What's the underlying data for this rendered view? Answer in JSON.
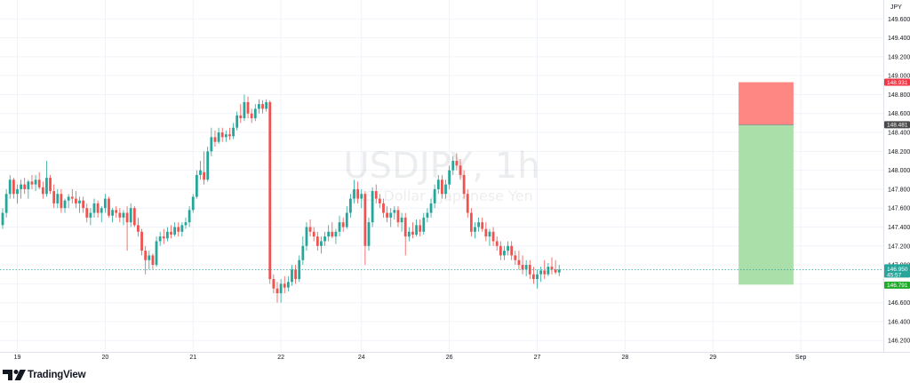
{
  "chart_data": {
    "type": "candlestick",
    "symbol": "USDJPY",
    "interval": "1h",
    "description": "U.S. Dollar / Japanese Yen",
    "currency_label": "JPY",
    "y_ticks": [
      "146.200",
      "146.400",
      "146.600",
      "146.800",
      "147.000",
      "147.200",
      "147.400",
      "147.600",
      "147.800",
      "148.000",
      "148.200",
      "148.400",
      "148.600",
      "148.800",
      "149.000",
      "149.200",
      "149.400",
      "149.600"
    ],
    "ylim": [
      146.08,
      149.8
    ],
    "x_ticks": [
      {
        "label": "19",
        "index": 4
      },
      {
        "label": "20",
        "index": 28
      },
      {
        "label": "21",
        "index": 52
      },
      {
        "label": "22",
        "index": 76
      },
      {
        "label": "24",
        "index": 98
      },
      {
        "label": "26",
        "index": 122
      },
      {
        "label": "27",
        "index": 146
      },
      {
        "label": "28",
        "index": 170
      },
      {
        "label": "29",
        "index": 194
      },
      {
        "label": "Sep",
        "index": 218
      }
    ],
    "current_price": "146.950",
    "countdown": "45:57",
    "position": {
      "type": "short",
      "stop_price": "148.931",
      "entry_price": "148.481",
      "target_price": "146.791",
      "stop": 148.931,
      "entry": 148.481,
      "target": 146.791,
      "start_index": 201,
      "end_index": 216
    },
    "candles": [
      [
        147.42,
        147.6,
        147.38,
        147.55
      ],
      [
        147.55,
        147.8,
        147.5,
        147.75
      ],
      [
        147.75,
        147.95,
        147.7,
        147.9
      ],
      [
        147.9,
        147.92,
        147.7,
        147.75
      ],
      [
        147.75,
        147.85,
        147.65,
        147.8
      ],
      [
        147.8,
        147.9,
        147.7,
        147.85
      ],
      [
        147.85,
        147.92,
        147.75,
        147.8
      ],
      [
        147.8,
        147.9,
        147.7,
        147.88
      ],
      [
        147.88,
        147.95,
        147.8,
        147.85
      ],
      [
        147.85,
        147.95,
        147.78,
        147.9
      ],
      [
        147.9,
        147.98,
        147.8,
        147.82
      ],
      [
        147.82,
        147.88,
        147.7,
        147.75
      ],
      [
        147.75,
        148.1,
        147.72,
        147.92
      ],
      [
        147.92,
        147.95,
        147.75,
        147.78
      ],
      [
        147.78,
        147.85,
        147.6,
        147.65
      ],
      [
        147.65,
        147.8,
        147.6,
        147.75
      ],
      [
        147.75,
        147.8,
        147.55,
        147.6
      ],
      [
        147.6,
        147.7,
        147.55,
        147.68
      ],
      [
        147.68,
        147.75,
        147.6,
        147.72
      ],
      [
        147.72,
        147.8,
        147.65,
        147.7
      ],
      [
        147.7,
        147.78,
        147.6,
        147.65
      ],
      [
        147.65,
        147.72,
        147.55,
        147.68
      ],
      [
        147.68,
        147.72,
        147.55,
        147.6
      ],
      [
        147.6,
        147.65,
        147.45,
        147.5
      ],
      [
        147.5,
        147.6,
        147.42,
        147.55
      ],
      [
        147.55,
        147.7,
        147.5,
        147.65
      ],
      [
        147.65,
        147.68,
        147.5,
        147.55
      ],
      [
        147.55,
        147.62,
        147.45,
        147.6
      ],
      [
        147.6,
        147.75,
        147.55,
        147.7
      ],
      [
        147.7,
        147.72,
        147.5,
        147.52
      ],
      [
        147.52,
        147.6,
        147.45,
        147.58
      ],
      [
        147.58,
        147.62,
        147.5,
        147.55
      ],
      [
        147.55,
        147.6,
        147.45,
        147.5
      ],
      [
        147.5,
        147.58,
        147.42,
        147.55
      ],
      [
        147.55,
        147.62,
        147.15,
        147.45
      ],
      [
        147.45,
        147.65,
        147.4,
        147.6
      ],
      [
        147.6,
        147.62,
        147.4,
        147.42
      ],
      [
        147.42,
        147.5,
        147.3,
        147.35
      ],
      [
        147.35,
        147.38,
        147.1,
        147.15
      ],
      [
        147.15,
        147.2,
        146.9,
        147.05
      ],
      [
        147.05,
        147.15,
        146.95,
        147.1
      ],
      [
        147.1,
        147.12,
        146.95,
        147.0
      ],
      [
        147.0,
        147.3,
        146.98,
        147.25
      ],
      [
        147.25,
        147.35,
        147.2,
        147.3
      ],
      [
        147.3,
        147.38,
        147.22,
        147.28
      ],
      [
        147.28,
        147.4,
        147.25,
        147.35
      ],
      [
        147.35,
        147.42,
        147.28,
        147.32
      ],
      [
        147.32,
        147.45,
        147.3,
        147.4
      ],
      [
        147.4,
        147.45,
        147.3,
        147.35
      ],
      [
        147.35,
        147.45,
        147.3,
        147.42
      ],
      [
        147.42,
        147.5,
        147.38,
        147.45
      ],
      [
        147.45,
        147.62,
        147.4,
        147.58
      ],
      [
        147.58,
        147.75,
        147.55,
        147.72
      ],
      [
        147.72,
        148.0,
        147.7,
        147.95
      ],
      [
        147.95,
        148.1,
        147.9,
        148.0
      ],
      [
        147.98,
        148.2,
        147.85,
        147.9
      ],
      [
        147.9,
        148.25,
        147.88,
        148.2
      ],
      [
        148.2,
        148.45,
        148.15,
        148.35
      ],
      [
        148.35,
        148.42,
        148.25,
        148.3
      ],
      [
        148.3,
        148.45,
        148.28,
        148.4
      ],
      [
        148.4,
        148.45,
        148.3,
        148.35
      ],
      [
        148.35,
        148.42,
        148.3,
        148.38
      ],
      [
        148.38,
        148.45,
        148.32,
        148.36
      ],
      [
        148.36,
        148.5,
        148.33,
        148.45
      ],
      [
        148.45,
        148.62,
        148.42,
        148.58
      ],
      [
        148.58,
        148.7,
        148.5,
        148.55
      ],
      [
        148.55,
        148.8,
        148.52,
        148.72
      ],
      [
        148.72,
        148.78,
        148.55,
        148.6
      ],
      [
        148.6,
        148.65,
        148.5,
        148.55
      ],
      [
        148.55,
        148.7,
        148.52,
        148.65
      ],
      [
        148.65,
        148.75,
        148.6,
        148.7
      ],
      [
        148.7,
        148.74,
        148.6,
        148.65
      ],
      [
        148.65,
        148.75,
        148.62,
        148.72
      ],
      [
        148.72,
        148.74,
        146.8,
        146.85
      ],
      [
        146.85,
        146.9,
        146.7,
        146.75
      ],
      [
        146.75,
        146.82,
        146.6,
        146.7
      ],
      [
        146.7,
        146.85,
        146.6,
        146.8
      ],
      [
        146.8,
        146.88,
        146.7,
        146.76
      ],
      [
        146.76,
        146.88,
        146.72,
        146.82
      ],
      [
        146.82,
        147.0,
        146.78,
        146.95
      ],
      [
        146.95,
        147.0,
        146.8,
        146.85
      ],
      [
        146.85,
        147.1,
        146.82,
        147.05
      ],
      [
        147.05,
        147.3,
        147.0,
        147.2
      ],
      [
        147.2,
        147.45,
        147.15,
        147.4
      ],
      [
        147.4,
        147.48,
        147.3,
        147.35
      ],
      [
        147.35,
        147.4,
        147.25,
        147.3
      ],
      [
        147.3,
        147.35,
        147.15,
        147.2
      ],
      [
        147.2,
        147.3,
        147.12,
        147.25
      ],
      [
        147.25,
        147.35,
        147.2,
        147.3
      ],
      [
        147.3,
        147.42,
        147.25,
        147.35
      ],
      [
        147.35,
        147.45,
        147.28,
        147.3
      ],
      [
        147.3,
        147.38,
        147.22,
        147.35
      ],
      [
        147.35,
        147.52,
        147.3,
        147.45
      ],
      [
        147.45,
        147.5,
        147.35,
        147.4
      ],
      [
        147.4,
        147.62,
        147.38,
        147.55
      ],
      [
        147.55,
        147.75,
        147.5,
        147.7
      ],
      [
        147.7,
        147.9,
        147.65,
        147.8
      ],
      [
        147.8,
        147.88,
        147.65,
        147.7
      ],
      [
        147.7,
        147.8,
        147.6,
        147.75
      ],
      [
        147.75,
        147.78,
        147.0,
        147.2
      ],
      [
        147.2,
        147.5,
        147.15,
        147.45
      ],
      [
        147.45,
        147.82,
        147.4,
        147.78
      ],
      [
        147.78,
        147.85,
        147.65,
        147.7
      ],
      [
        147.7,
        147.75,
        147.6,
        147.65
      ],
      [
        147.65,
        147.7,
        147.5,
        147.55
      ],
      [
        147.55,
        147.62,
        147.45,
        147.5
      ],
      [
        147.5,
        147.6,
        147.4,
        147.55
      ],
      [
        147.55,
        147.62,
        147.48,
        147.58
      ],
      [
        147.58,
        147.62,
        147.4,
        147.45
      ],
      [
        147.45,
        147.55,
        147.35,
        147.5
      ],
      [
        147.5,
        147.55,
        147.1,
        147.3
      ],
      [
        147.3,
        147.4,
        147.25,
        147.35
      ],
      [
        147.35,
        147.45,
        147.28,
        147.32
      ],
      [
        147.32,
        147.48,
        147.3,
        147.42
      ],
      [
        147.42,
        147.48,
        147.3,
        147.35
      ],
      [
        147.35,
        147.55,
        147.32,
        147.5
      ],
      [
        147.5,
        147.6,
        147.45,
        147.55
      ],
      [
        147.55,
        147.7,
        147.5,
        147.65
      ],
      [
        147.65,
        147.85,
        147.6,
        147.8
      ],
      [
        147.8,
        147.95,
        147.75,
        147.9
      ],
      [
        147.9,
        147.95,
        147.7,
        147.75
      ],
      [
        147.75,
        147.9,
        147.7,
        147.85
      ],
      [
        147.85,
        148.05,
        147.8,
        148.0
      ],
      [
        148.0,
        148.15,
        147.95,
        148.1
      ],
      [
        148.1,
        148.18,
        148.0,
        148.05
      ],
      [
        148.05,
        148.12,
        147.9,
        147.95
      ],
      [
        147.95,
        148.0,
        147.7,
        147.75
      ],
      [
        147.75,
        147.8,
        147.5,
        147.55
      ],
      [
        147.55,
        147.6,
        147.3,
        147.35
      ],
      [
        147.35,
        147.45,
        147.28,
        147.4
      ],
      [
        147.4,
        147.5,
        147.35,
        147.45
      ],
      [
        147.45,
        147.5,
        147.35,
        147.38
      ],
      [
        147.38,
        147.45,
        147.25,
        147.3
      ],
      [
        147.3,
        147.38,
        147.2,
        147.35
      ],
      [
        147.35,
        147.4,
        147.2,
        147.25
      ],
      [
        147.25,
        147.3,
        147.15,
        147.2
      ],
      [
        147.2,
        147.25,
        147.05,
        147.1
      ],
      [
        147.1,
        147.2,
        147.05,
        147.15
      ],
      [
        147.15,
        147.25,
        147.1,
        147.2
      ],
      [
        147.2,
        147.25,
        147.05,
        147.1
      ],
      [
        147.1,
        147.15,
        147.0,
        147.05
      ],
      [
        147.05,
        147.15,
        146.95,
        147.0
      ],
      [
        147.0,
        147.1,
        146.9,
        146.95
      ],
      [
        146.95,
        147.05,
        146.88,
        147.0
      ],
      [
        147.0,
        147.05,
        146.85,
        146.9
      ],
      [
        146.9,
        146.98,
        146.8,
        146.85
      ],
      [
        146.85,
        146.95,
        146.75,
        146.9
      ],
      [
        146.9,
        146.98,
        146.82,
        146.94
      ],
      [
        146.94,
        147.05,
        146.85,
        146.9
      ],
      [
        146.9,
        147.02,
        146.88,
        146.98
      ],
      [
        146.98,
        147.08,
        146.9,
        146.95
      ],
      [
        146.95,
        147.05,
        146.9,
        146.92
      ],
      [
        146.92,
        147.0,
        146.88,
        146.95
      ]
    ]
  },
  "footer": {
    "brand": "TradingView"
  },
  "colors": {
    "up": "#26a69a",
    "down": "#ef5350",
    "profit_zone": "#abdfa9",
    "loss_zone": "#ff8783",
    "entry_tag": "#4a4a4a",
    "stop_tag": "#f23645",
    "target_tag": "#22ab2b",
    "price_line": "#26a69a",
    "grid": "#f0f3fa",
    "axis_line": "#e0e3eb"
  }
}
